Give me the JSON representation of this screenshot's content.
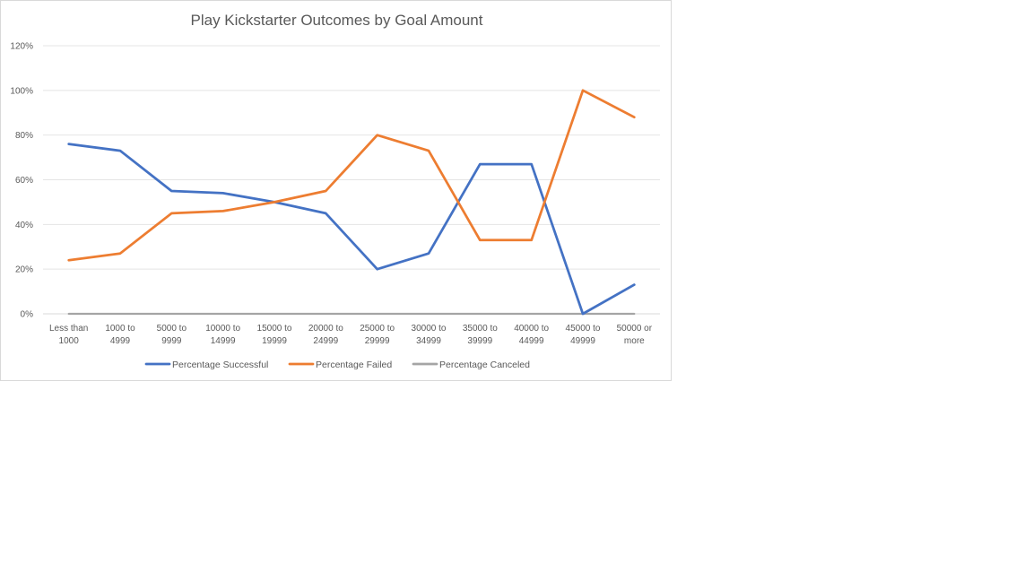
{
  "chart_data": {
    "type": "line",
    "title": "Play Kickstarter Outcomes by Goal Amount",
    "xlabel": "",
    "ylabel": "",
    "ylim": [
      0,
      1.2
    ],
    "ytick_values": [
      0,
      0.2,
      0.4,
      0.6,
      0.8,
      1.0,
      1.2
    ],
    "ytick_labels": [
      "0%",
      "20%",
      "40%",
      "60%",
      "80%",
      "100%",
      "120%"
    ],
    "categories": [
      [
        "Less than",
        "1000"
      ],
      [
        "1000 to",
        "4999"
      ],
      [
        "5000 to",
        "9999"
      ],
      [
        "10000 to",
        "14999"
      ],
      [
        "15000 to",
        "19999"
      ],
      [
        "20000 to",
        "24999"
      ],
      [
        "25000 to",
        "29999"
      ],
      [
        "30000 to",
        "34999"
      ],
      [
        "35000 to",
        "39999"
      ],
      [
        "40000 to",
        "44999"
      ],
      [
        "45000 to",
        "49999"
      ],
      [
        "50000 or",
        "more"
      ]
    ],
    "series": [
      {
        "name": "Percentage Successful",
        "color": "#4472c4",
        "values": [
          0.76,
          0.73,
          0.55,
          0.54,
          0.5,
          0.45,
          0.2,
          0.27,
          0.67,
          0.67,
          0.0,
          0.13
        ]
      },
      {
        "name": "Percentage Failed",
        "color": "#ed7d31",
        "values": [
          0.24,
          0.27,
          0.45,
          0.46,
          0.5,
          0.55,
          0.8,
          0.73,
          0.33,
          0.33,
          1.0,
          0.88
        ]
      },
      {
        "name": "Percentage Canceled",
        "color": "#a5a5a5",
        "values": [
          0,
          0,
          0,
          0,
          0,
          0,
          0,
          0,
          0,
          0,
          0,
          0
        ]
      }
    ],
    "grid": true,
    "legend_position": "bottom"
  }
}
